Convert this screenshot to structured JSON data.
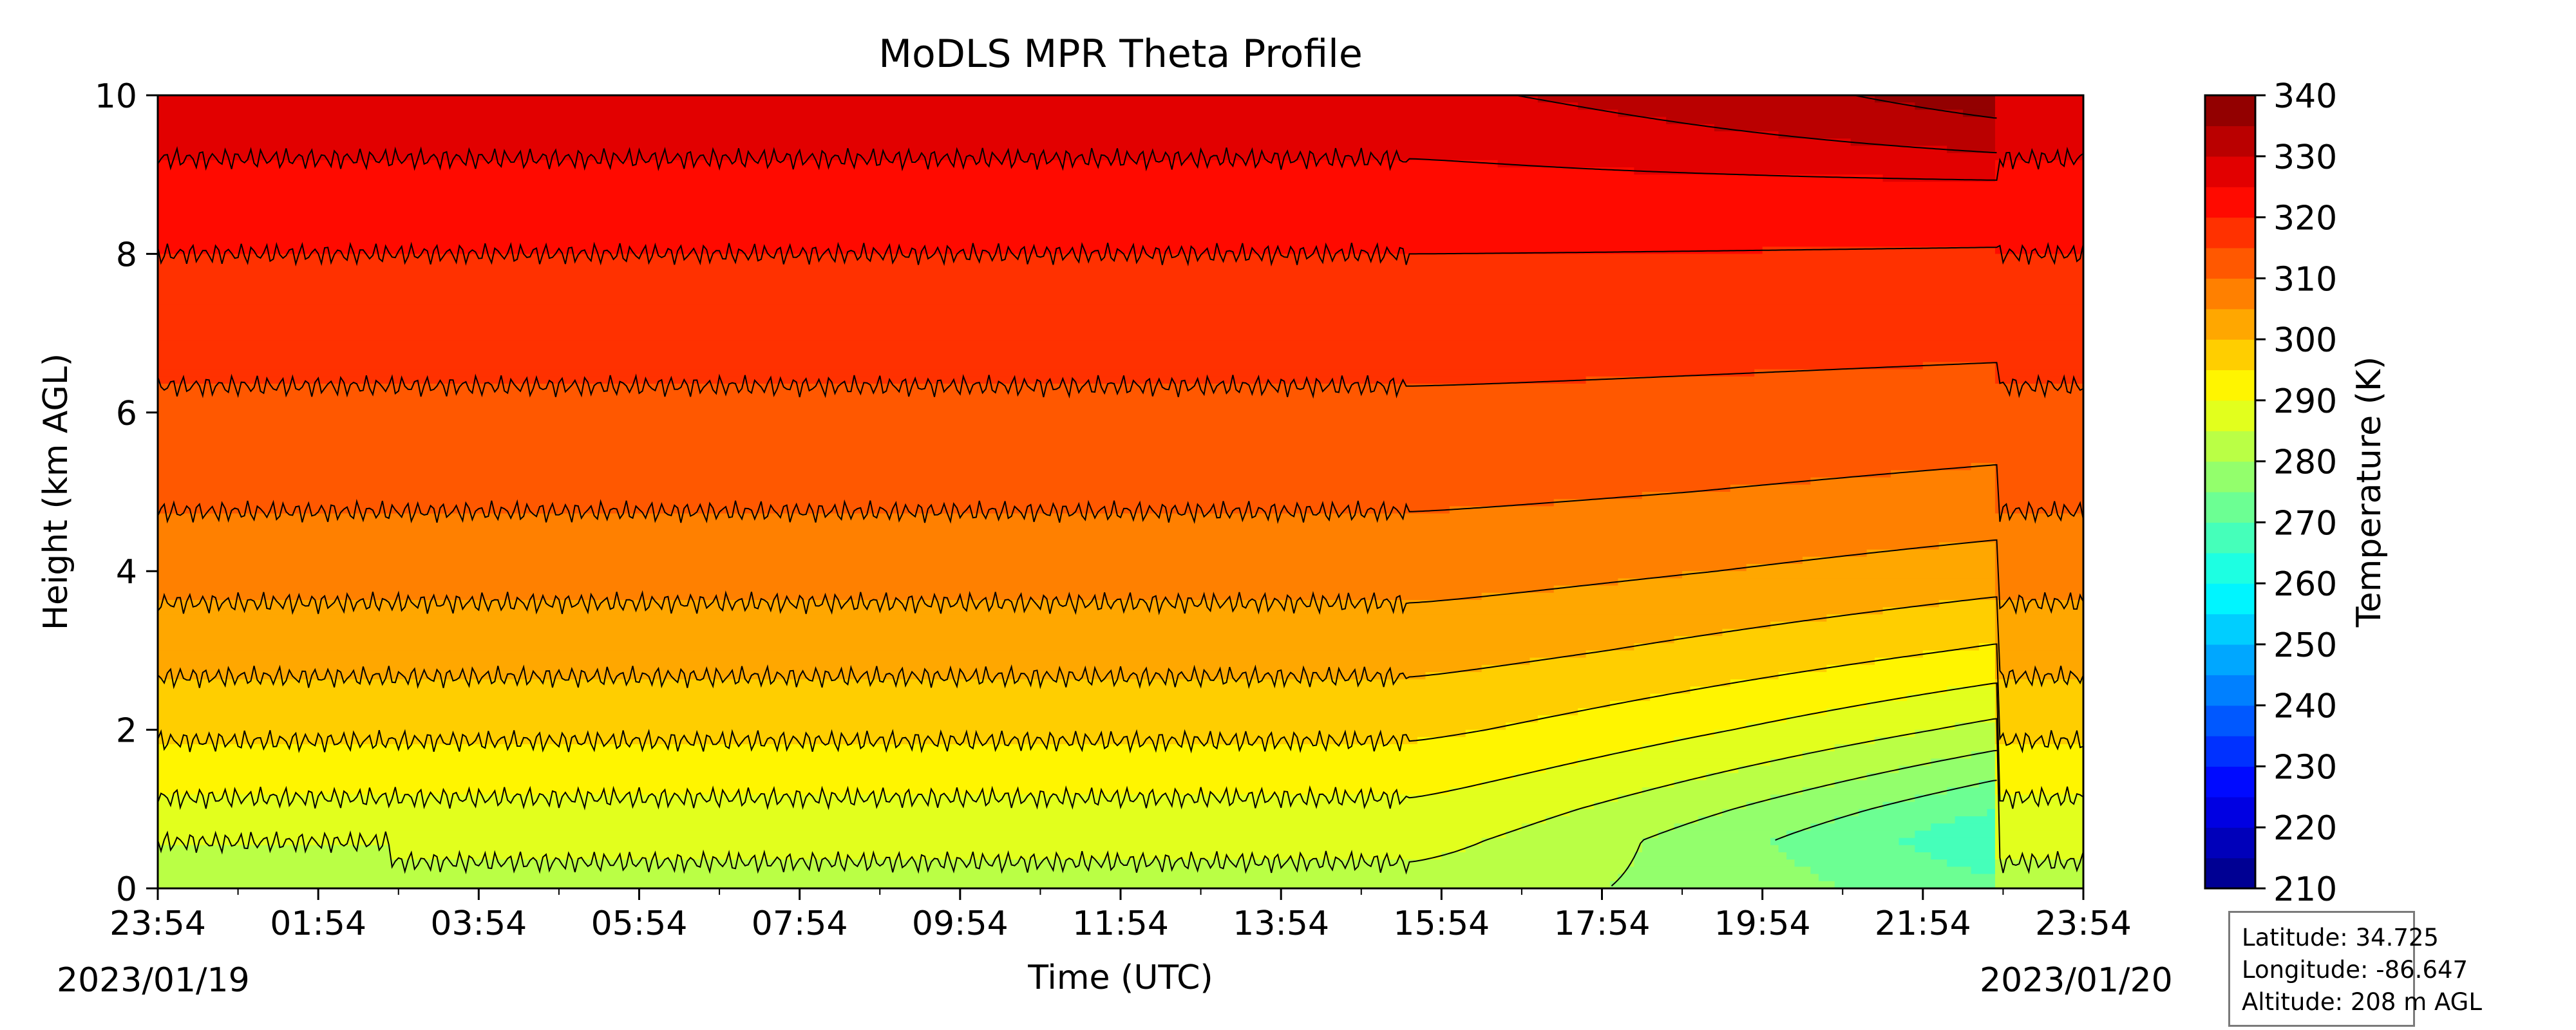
{
  "chart_data": {
    "type": "heatmap",
    "subtype": "filled-contour",
    "title": "MoDLS MPR Theta Profile",
    "xlabel": "Time (UTC)",
    "ylabel": "Height (km AGL)",
    "x_tick_labels": [
      "23:54",
      "01:54",
      "03:54",
      "05:54",
      "07:54",
      "09:54",
      "11:54",
      "13:54",
      "15:54",
      "17:54",
      "19:54",
      "21:54",
      "23:54"
    ],
    "x_range_hours": [
      0,
      24
    ],
    "start_date": "2023/01/19",
    "end_date": "2023/01/20",
    "y_ticks": [
      0,
      2,
      4,
      6,
      8,
      10
    ],
    "ylim": [
      0,
      10
    ],
    "colorbar": {
      "label": "Temperature (K)",
      "ticks": [
        210,
        220,
        230,
        240,
        250,
        260,
        270,
        280,
        290,
        300,
        310,
        320,
        330,
        340
      ],
      "range": [
        210,
        340
      ],
      "levels_step": 5,
      "colormap": "jet"
    },
    "contour_levels_k": [
      275,
      280,
      285,
      290,
      295,
      300,
      305,
      310,
      315,
      320,
      325,
      330,
      335
    ],
    "theta_profile": {
      "regime_until_hour": 15.6,
      "steady_profile": [
        {
          "height_km": 0,
          "theta_k": 283
        },
        {
          "height_km": 1,
          "theta_k": 289
        },
        {
          "height_km": 2,
          "theta_k": 296
        },
        {
          "height_km": 3,
          "theta_k": 302
        },
        {
          "height_km": 4,
          "theta_k": 307
        },
        {
          "height_km": 5,
          "theta_k": 311
        },
        {
          "height_km": 6,
          "theta_k": 314
        },
        {
          "height_km": 7,
          "theta_k": 317
        },
        {
          "height_km": 8,
          "theta_k": 320
        },
        {
          "height_km": 9,
          "theta_k": 324
        },
        {
          "height_km": 10,
          "theta_k": 329
        }
      ],
      "cold_core": {
        "hour": 22.9,
        "height_km": 0.6,
        "theta_k": 262
      },
      "upper_warm": {
        "hour": 22.9,
        "height_km": 9.9,
        "theta_k": 338
      },
      "recovery_hour": 22.95
    },
    "grid": false
  },
  "station_info": {
    "latitude": "Latitude: 34.725",
    "longitude": "Longitude: -86.647",
    "altitude": "Altitude: 208 m AGL"
  }
}
